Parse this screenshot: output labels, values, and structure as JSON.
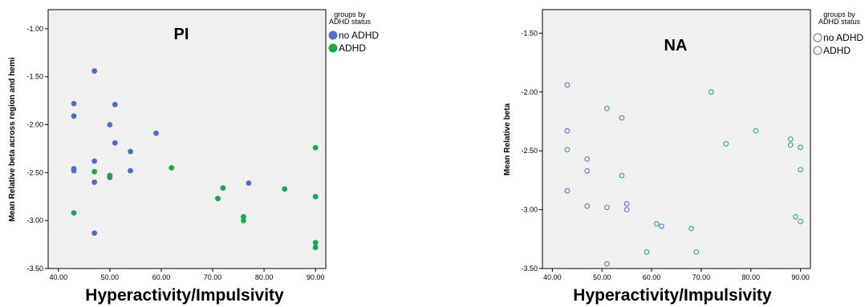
{
  "colors": {
    "no_adhd": "#4e6fc6",
    "adhd": "#1aa84a"
  },
  "chart_data": [
    {
      "type": "scatter",
      "title": "PI",
      "xlabel": "Hyperactivity/Impulsivity",
      "ylabel": "Mean Relative beta across region and hemi",
      "xlim": [
        38,
        92
      ],
      "ylim": [
        -3.5,
        -0.8
      ],
      "x_ticks": [
        "40.00",
        "50.00",
        "60.00",
        "70.00",
        "80.00",
        "90.00"
      ],
      "y_ticks": [
        "-1.00",
        "-1.50",
        "-2.00",
        "-2.50",
        "-3.00",
        "-3.50"
      ],
      "marker": "filled",
      "legend_title_lines": [
        "groups by",
        "ADHD status"
      ],
      "legend_position": "outside-right",
      "grid": false,
      "series": [
        {
          "name": "no ADHD",
          "points": [
            [
              43,
              -1.78
            ],
            [
              43,
              -1.91
            ],
            [
              43,
              -2.46
            ],
            [
              43,
              -2.48
            ],
            [
              47,
              -1.44
            ],
            [
              47,
              -2.38
            ],
            [
              47,
              -2.6
            ],
            [
              47,
              -3.13
            ],
            [
              50,
              -2.0
            ],
            [
              50,
              -2.55
            ],
            [
              51,
              -1.79
            ],
            [
              51,
              -2.19
            ],
            [
              54,
              -2.28
            ],
            [
              54,
              -2.48
            ],
            [
              59,
              -2.09
            ],
            [
              77,
              -2.61
            ]
          ]
        },
        {
          "name": "ADHD",
          "points": [
            [
              43,
              -2.92
            ],
            [
              47,
              -2.49
            ],
            [
              50,
              -2.53
            ],
            [
              62,
              -2.45
            ],
            [
              71,
              -2.77
            ],
            [
              72,
              -2.66
            ],
            [
              76,
              -2.96
            ],
            [
              76,
              -3.0
            ],
            [
              84,
              -2.67
            ],
            [
              90,
              -2.24
            ],
            [
              90,
              -2.75
            ],
            [
              90,
              -3.23
            ],
            [
              90,
              -3.28
            ]
          ]
        }
      ]
    },
    {
      "type": "scatter",
      "title": "NA",
      "xlabel": "Hyperactivity/Impulsivity",
      "ylabel": "Mean Relative beta",
      "xlim": [
        38,
        92
      ],
      "ylim": [
        -3.5,
        -1.3
      ],
      "x_ticks": [
        "40.00",
        "50.00",
        "60.00",
        "70.00",
        "80.00",
        "90.00"
      ],
      "y_ticks": [
        "-1.50",
        "-2.00",
        "-2.50",
        "-3.00",
        "-3.50"
      ],
      "marker": "hollow",
      "legend_title_lines": [
        "groups by",
        "ADHD status"
      ],
      "legend_position": "outside-right",
      "grid": false,
      "series": [
        {
          "name": "no ADHD",
          "points": [
            [
              43,
              -1.94
            ],
            [
              43,
              -2.33
            ],
            [
              43,
              -2.49
            ],
            [
              43,
              -2.84
            ],
            [
              47,
              -2.57
            ],
            [
              47,
              -2.67
            ],
            [
              47,
              -2.97
            ],
            [
              51,
              -2.98
            ],
            [
              51,
              -3.46
            ],
            [
              54,
              -2.22
            ],
            [
              55,
              -2.95
            ],
            [
              55,
              -3.0
            ],
            [
              62,
              -3.14
            ]
          ]
        },
        {
          "name": "ADHD",
          "points": [
            [
              51,
              -2.14
            ],
            [
              54,
              -2.71
            ],
            [
              59,
              -3.36
            ],
            [
              61,
              -3.12
            ],
            [
              68,
              -3.16
            ],
            [
              69,
              -3.36
            ],
            [
              72,
              -2.0
            ],
            [
              75,
              -2.44
            ],
            [
              81,
              -2.33
            ],
            [
              88,
              -2.4
            ],
            [
              88,
              -2.45
            ],
            [
              89,
              -3.06
            ],
            [
              90,
              -2.47
            ],
            [
              90,
              -2.66
            ],
            [
              90,
              -3.1
            ]
          ]
        }
      ]
    }
  ]
}
